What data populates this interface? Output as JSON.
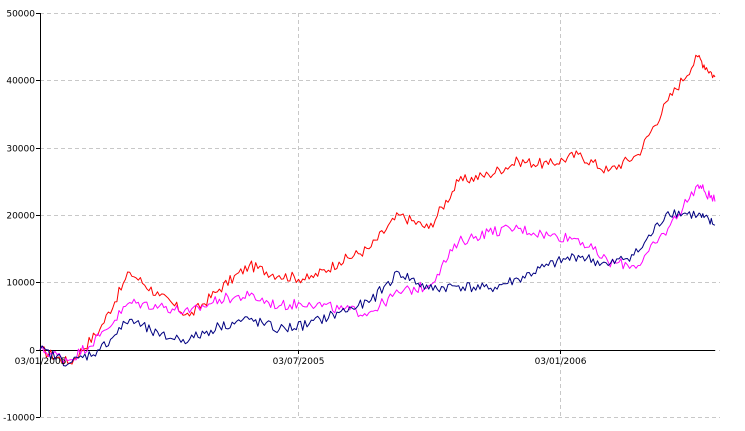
{
  "chart_data": {
    "type": "line",
    "title": "",
    "xlabel": "",
    "ylabel": "",
    "x_tick_labels": [
      "03/01/2005",
      "03/07/2005",
      "03/01/2006"
    ],
    "y_tick_labels": [
      "50000",
      "40000",
      "30000",
      "20000",
      "10000",
      "0",
      "-10000"
    ],
    "ylim": [
      -10000,
      50000
    ],
    "xlim": [
      "03/01/2005",
      "22/04/2006"
    ],
    "grid": true,
    "legend": "none",
    "x": [
      "03/01/2005",
      "24/01/2005",
      "14/02/2005",
      "07/03/2005",
      "28/03/2005",
      "18/04/2005",
      "09/05/2005",
      "30/05/2005",
      "20/06/2005",
      "11/07/2005",
      "01/08/2005",
      "22/08/2005",
      "12/09/2005",
      "03/10/2005",
      "24/10/2005",
      "14/11/2005",
      "05/12/2005",
      "26/12/2005",
      "16/01/2006",
      "06/02/2006",
      "27/02/2006",
      "20/03/2006",
      "10/04/2006",
      "22/04/2006"
    ],
    "series": [
      {
        "color": "#ff0000",
        "values": [
          0,
          -2000,
          3000,
          11500,
          8000,
          5000,
          9000,
          12500,
          11000,
          10500,
          13000,
          15000,
          20000,
          18000,
          25000,
          26000,
          28000,
          27500,
          29000,
          26500,
          29000,
          37000,
          43500,
          40500
        ]
      },
      {
        "color": "#ff00ff",
        "values": [
          0,
          -1500,
          2000,
          7000,
          6500,
          5500,
          7500,
          8000,
          6500,
          7000,
          6000,
          5500,
          8500,
          9500,
          16000,
          17500,
          18000,
          17000,
          16500,
          13000,
          12500,
          18000,
          24500,
          22000
        ]
      },
      {
        "color": "#000080",
        "values": [
          0,
          -2000,
          0,
          4500,
          2000,
          1500,
          3500,
          4500,
          3000,
          3800,
          5500,
          7000,
          11500,
          9000,
          9500,
          9000,
          10500,
          12500,
          14000,
          12500,
          14500,
          20500,
          20000,
          18500
        ]
      }
    ]
  }
}
